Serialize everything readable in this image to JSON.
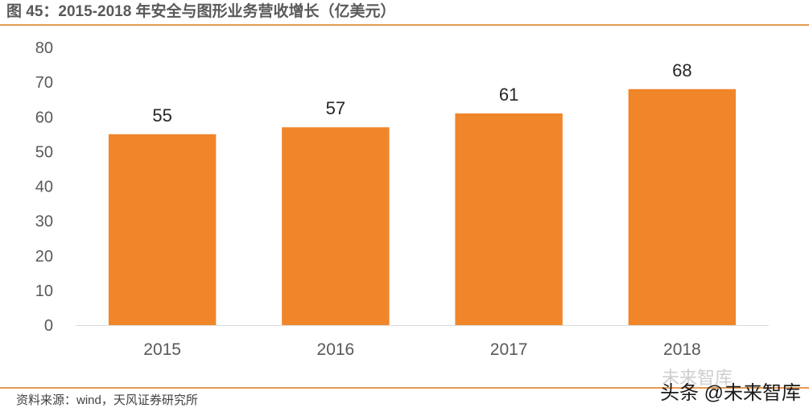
{
  "figure": {
    "title": "图 45：2015-2018 年安全与图形业务营收增长（亿美元）",
    "source": "资料来源：wind，天风证券研究所",
    "watermark": "头条 @未来智库",
    "watermark_ghost": "未来智库"
  },
  "colors": {
    "bar": "#F0852A",
    "rule": "#E69A50",
    "axis": "#D9D9D9",
    "text": "#262626",
    "tick_text": "#595959"
  },
  "chart_data": {
    "type": "bar",
    "categories": [
      "2015",
      "2016",
      "2017",
      "2018"
    ],
    "values": [
      55,
      57,
      61,
      68
    ],
    "data_labels": [
      "55",
      "57",
      "61",
      "68"
    ],
    "ylim": [
      0,
      80
    ],
    "y_ticks": [
      "0",
      "10",
      "20",
      "30",
      "40",
      "50",
      "60",
      "70",
      "80"
    ],
    "grid": false,
    "legend": "none"
  }
}
